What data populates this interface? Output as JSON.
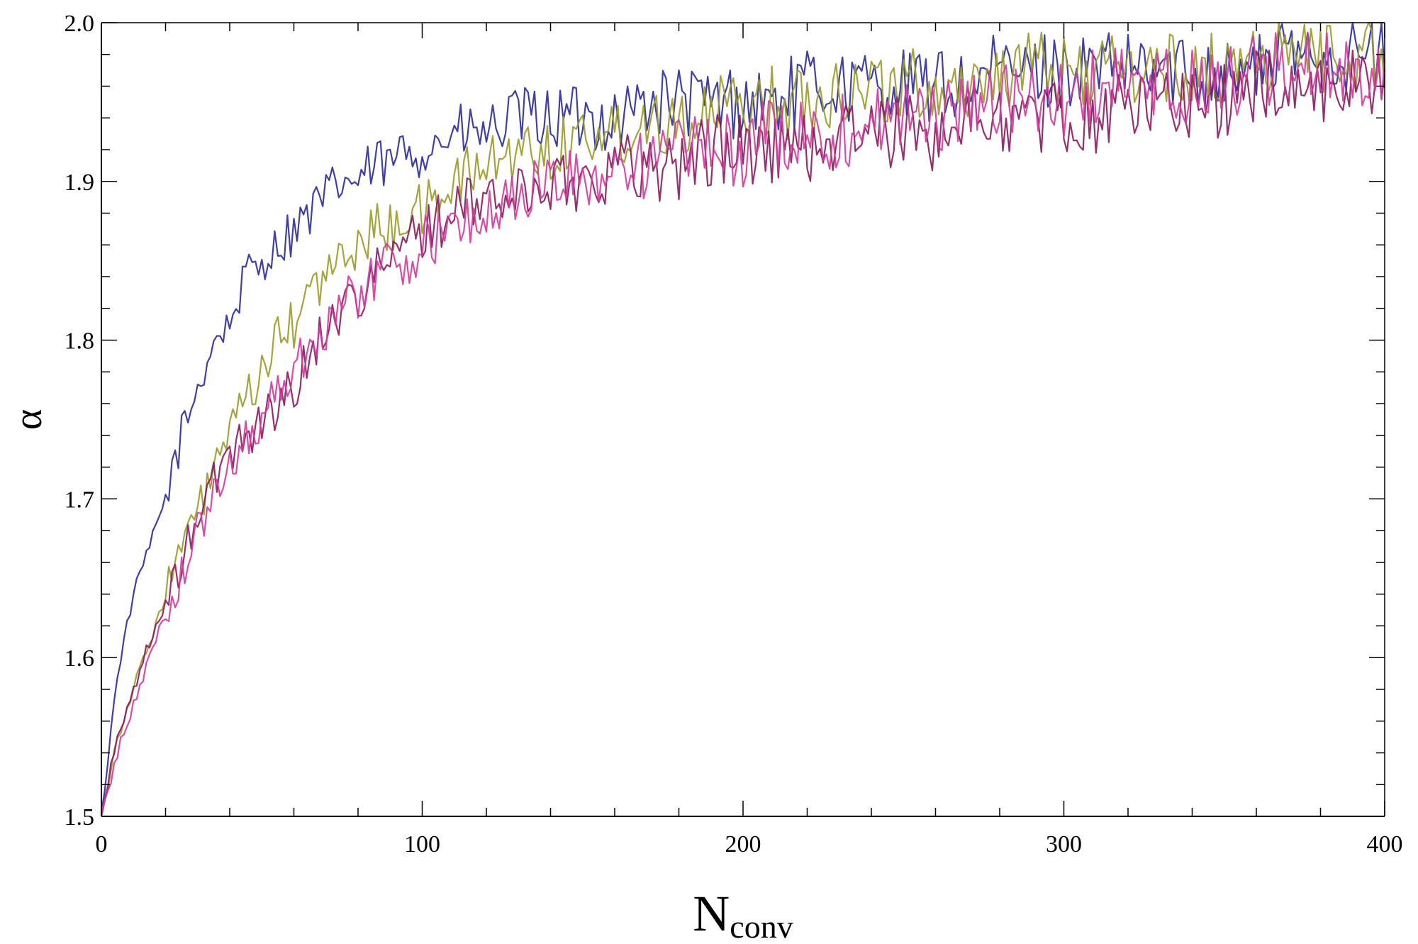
{
  "chart_data": {
    "type": "line",
    "xlabel": "N",
    "xlabel_sub": "conv",
    "ylabel": "α",
    "xlim": [
      0,
      400
    ],
    "ylim": [
      1.5,
      2.0
    ],
    "x_ticks": [
      "0",
      "100",
      "200",
      "300",
      "400"
    ],
    "y_ticks": [
      "1.5",
      "1.6",
      "1.7",
      "1.8",
      "1.9",
      "2.0"
    ],
    "grid": false,
    "legend": "none",
    "series": [
      {
        "color": "#2a2a9a",
        "x": [
          0,
          5,
          10,
          15,
          20,
          25,
          30,
          35,
          40,
          45,
          50,
          55,
          60,
          65,
          70,
          75,
          80,
          85,
          90,
          95,
          100,
          110,
          120,
          130,
          140,
          150,
          160,
          170,
          180,
          190,
          200,
          210,
          220,
          230,
          240,
          250,
          260,
          270,
          280,
          290,
          300,
          310,
          320,
          330,
          340,
          350,
          360,
          370,
          380,
          390,
          400
        ],
        "values": [
          1.5,
          1.59,
          1.64,
          1.67,
          1.7,
          1.74,
          1.77,
          1.8,
          1.81,
          1.84,
          1.85,
          1.86,
          1.87,
          1.88,
          1.89,
          1.9,
          1.9,
          1.91,
          1.91,
          1.92,
          1.92,
          1.93,
          1.93,
          1.94,
          1.94,
          1.94,
          1.94,
          1.95,
          1.95,
          1.95,
          1.95,
          1.95,
          1.96,
          1.96,
          1.96,
          1.96,
          1.96,
          1.96,
          1.97,
          1.97,
          1.97,
          1.97,
          1.97,
          1.97,
          1.97,
          1.97,
          1.97,
          1.98,
          1.98,
          1.98,
          1.98
        ]
      },
      {
        "color": "#9a9a28",
        "x": [
          0,
          5,
          10,
          15,
          20,
          25,
          30,
          35,
          40,
          45,
          50,
          55,
          60,
          65,
          70,
          75,
          80,
          85,
          90,
          95,
          100,
          110,
          120,
          130,
          140,
          150,
          160,
          170,
          180,
          190,
          200,
          210,
          220,
          230,
          240,
          250,
          260,
          270,
          280,
          290,
          300,
          310,
          320,
          330,
          340,
          350,
          360,
          370,
          380,
          390,
          400
        ],
        "values": [
          1.5,
          1.55,
          1.58,
          1.61,
          1.64,
          1.67,
          1.69,
          1.72,
          1.74,
          1.76,
          1.78,
          1.8,
          1.81,
          1.83,
          1.84,
          1.85,
          1.86,
          1.87,
          1.87,
          1.88,
          1.88,
          1.9,
          1.91,
          1.92,
          1.92,
          1.93,
          1.93,
          1.94,
          1.94,
          1.94,
          1.95,
          1.95,
          1.95,
          1.96,
          1.96,
          1.96,
          1.96,
          1.96,
          1.97,
          1.97,
          1.97,
          1.97,
          1.97,
          1.97,
          1.97,
          1.97,
          1.98,
          1.98,
          1.98,
          1.98,
          1.98
        ]
      },
      {
        "color": "#8a1a5e",
        "x": [
          0,
          5,
          10,
          15,
          20,
          25,
          30,
          35,
          40,
          45,
          50,
          55,
          60,
          65,
          70,
          75,
          80,
          85,
          90,
          95,
          100,
          110,
          120,
          130,
          140,
          150,
          160,
          170,
          180,
          190,
          200,
          210,
          220,
          230,
          240,
          250,
          260,
          270,
          280,
          290,
          300,
          310,
          320,
          330,
          340,
          350,
          360,
          370,
          380,
          390,
          400
        ],
        "values": [
          1.5,
          1.55,
          1.58,
          1.61,
          1.63,
          1.66,
          1.69,
          1.71,
          1.73,
          1.74,
          1.75,
          1.76,
          1.77,
          1.79,
          1.81,
          1.82,
          1.83,
          1.84,
          1.85,
          1.86,
          1.87,
          1.88,
          1.89,
          1.89,
          1.9,
          1.9,
          1.91,
          1.91,
          1.91,
          1.92,
          1.92,
          1.92,
          1.92,
          1.93,
          1.93,
          1.93,
          1.93,
          1.94,
          1.94,
          1.94,
          1.94,
          1.94,
          1.95,
          1.95,
          1.95,
          1.95,
          1.96,
          1.96,
          1.96,
          1.96,
          1.97
        ]
      },
      {
        "color": "#d23a9c",
        "x": [
          0,
          5,
          10,
          15,
          20,
          25,
          30,
          35,
          40,
          45,
          50,
          55,
          60,
          65,
          70,
          75,
          80,
          85,
          90,
          95,
          100,
          110,
          120,
          130,
          140,
          150,
          160,
          170,
          180,
          190,
          200,
          210,
          220,
          230,
          240,
          250,
          260,
          270,
          280,
          290,
          300,
          310,
          320,
          330,
          340,
          350,
          360,
          370,
          380,
          390,
          400
        ],
        "values": [
          1.5,
          1.54,
          1.57,
          1.6,
          1.63,
          1.65,
          1.68,
          1.7,
          1.72,
          1.74,
          1.75,
          1.77,
          1.78,
          1.8,
          1.81,
          1.82,
          1.83,
          1.84,
          1.85,
          1.85,
          1.86,
          1.87,
          1.88,
          1.89,
          1.9,
          1.9,
          1.91,
          1.91,
          1.92,
          1.92,
          1.92,
          1.93,
          1.93,
          1.93,
          1.94,
          1.94,
          1.94,
          1.95,
          1.95,
          1.95,
          1.95,
          1.96,
          1.96,
          1.96,
          1.96,
          1.96,
          1.97,
          1.97,
          1.97,
          1.97,
          1.97
        ]
      }
    ]
  }
}
